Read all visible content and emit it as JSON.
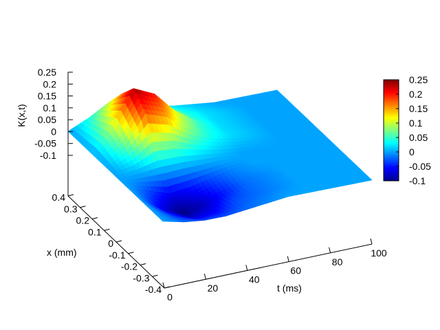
{
  "chart_data": {
    "type": "surface3d",
    "title": "",
    "zlabel": "K(x,t)",
    "xlabel": "t (ms)",
    "ylabel": "x (mm)",
    "t_range": [
      0,
      100
    ],
    "x_range": [
      -0.4,
      0.4
    ],
    "z_range": [
      -0.1,
      0.25
    ],
    "t_ticks": [
      "0",
      "20",
      "40",
      "60",
      "80",
      "100"
    ],
    "x_ticks": [
      "0.4",
      "0.3",
      "0.2",
      "0.1",
      "0",
      "-0.1",
      "-0.2",
      "-0.3",
      "-0.4"
    ],
    "z_ticks": [
      "0.25",
      "0.2",
      "0.15",
      "0.1",
      "0.05",
      "0",
      "-0.05",
      "-0.1"
    ],
    "colorbar_ticks": [
      "0.25",
      "0.2",
      "0.15",
      "0.1",
      "0.05",
      "0",
      "-0.05",
      "-0.1"
    ],
    "colormap": "jet",
    "colorbar_range": [
      -0.1,
      0.25
    ],
    "surface_samples": {
      "t": [
        0,
        10,
        20,
        30,
        40,
        50,
        60,
        70,
        80,
        90,
        100
      ],
      "x": [
        0.4,
        0.3,
        0.2,
        0.1,
        0,
        -0.1,
        -0.2,
        -0.3,
        -0.4
      ],
      "K": [
        [
          0.0,
          0.04,
          0.09,
          0.07,
          0.04,
          0.02,
          0.01,
          0.0,
          0.0,
          0.0,
          0.0
        ],
        [
          0.0,
          0.07,
          0.17,
          0.14,
          0.08,
          0.04,
          0.02,
          0.01,
          0.0,
          0.0,
          0.0
        ],
        [
          0.0,
          0.1,
          0.24,
          0.2,
          0.11,
          0.05,
          0.02,
          0.01,
          0.0,
          0.0,
          0.0
        ],
        [
          0.0,
          0.06,
          0.18,
          0.15,
          0.08,
          0.04,
          0.02,
          0.01,
          0.0,
          0.0,
          0.0
        ],
        [
          0.0,
          0.01,
          0.03,
          0.03,
          0.02,
          0.01,
          0.0,
          0.0,
          0.0,
          0.0,
          0.0
        ],
        [
          0.0,
          -0.03,
          -0.06,
          -0.05,
          -0.03,
          -0.01,
          0.0,
          0.0,
          0.0,
          0.0,
          0.0
        ],
        [
          0.0,
          -0.06,
          -0.1,
          -0.08,
          -0.05,
          -0.02,
          -0.01,
          0.0,
          0.0,
          0.0,
          0.0
        ],
        [
          0.0,
          -0.04,
          -0.07,
          -0.06,
          -0.03,
          -0.02,
          -0.01,
          0.0,
          0.0,
          0.0,
          0.0
        ],
        [
          0.0,
          -0.02,
          -0.03,
          -0.03,
          -0.02,
          -0.01,
          0.0,
          0.0,
          0.0,
          0.0,
          0.0
        ]
      ]
    }
  }
}
